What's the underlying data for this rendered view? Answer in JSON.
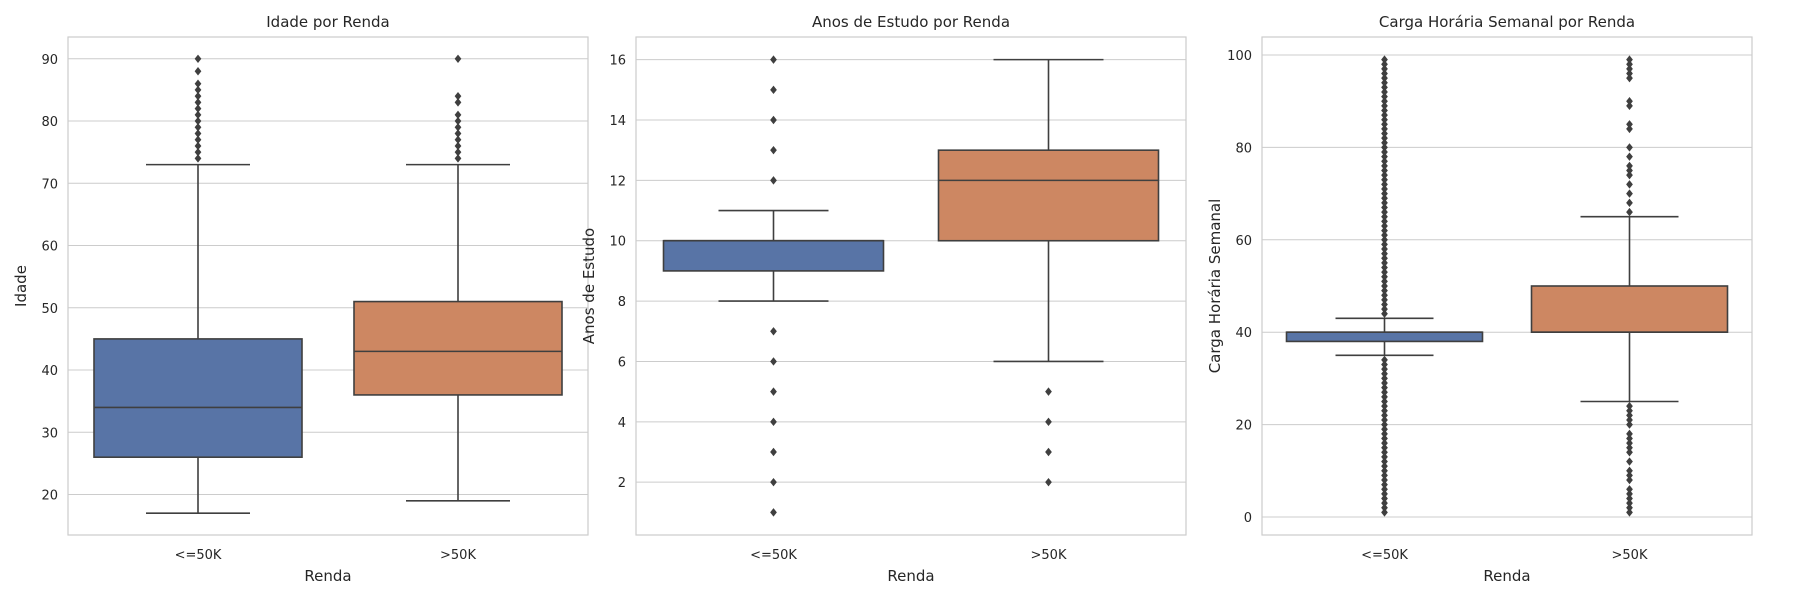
{
  "chart_data": [
    {
      "type": "box",
      "title": "Idade por Renda",
      "xlabel": "Renda",
      "ylabel": "Idade",
      "categories": [
        "<=50K",
        ">50K"
      ],
      "ylim": [
        13.5,
        93.5
      ],
      "yticks": [
        20,
        30,
        40,
        50,
        60,
        70,
        80,
        90
      ],
      "grid": true,
      "boxes": [
        {
          "category": "<=50K",
          "color": "#5874a6",
          "whisker_low": 17,
          "q1": 26,
          "median": 34,
          "q3": 45,
          "whisker_high": 73,
          "outliers": [
            74,
            75,
            76,
            77,
            78,
            79,
            80,
            81,
            82,
            83,
            84,
            85,
            86,
            88,
            90
          ]
        },
        {
          "category": ">50K",
          "color": "#cd8762",
          "whisker_low": 19,
          "q1": 36,
          "median": 43,
          "q3": 51,
          "whisker_high": 73,
          "outliers": [
            74,
            75,
            76,
            77,
            78,
            79,
            80,
            81,
            83,
            84,
            90
          ]
        }
      ]
    },
    {
      "type": "box",
      "title": "Anos de Estudo por Renda",
      "xlabel": "Renda",
      "ylabel": "Anos de Estudo",
      "categories": [
        "<=50K",
        ">50K"
      ],
      "ylim": [
        0.25,
        16.75
      ],
      "yticks": [
        2,
        4,
        6,
        8,
        10,
        12,
        14,
        16
      ],
      "grid": true,
      "boxes": [
        {
          "category": "<=50K",
          "color": "#5874a6",
          "whisker_low": 8,
          "q1": 9,
          "median": 10,
          "q3": 10,
          "whisker_high": 11,
          "outliers": [
            1,
            2,
            3,
            4,
            5,
            6,
            7,
            12,
            13,
            14,
            15,
            16
          ]
        },
        {
          "category": ">50K",
          "color": "#cd8762",
          "whisker_low": 6,
          "q1": 10,
          "median": 12,
          "q3": 13,
          "whisker_high": 16,
          "outliers": [
            2,
            3,
            4,
            5
          ]
        }
      ]
    },
    {
      "type": "box",
      "title": "Carga Horária Semanal por Renda",
      "xlabel": "Renda",
      "ylabel": "Carga Horária Semanal",
      "categories": [
        "<=50K",
        ">50K"
      ],
      "ylim": [
        -3.9,
        103.9
      ],
      "yticks": [
        0,
        20,
        40,
        60,
        80,
        100
      ],
      "grid": true,
      "boxes": [
        {
          "category": "<=50K",
          "color": "#5874a6",
          "whisker_low": 35,
          "q1": 38,
          "median": 40,
          "q3": 40,
          "whisker_high": 43,
          "outliers": [
            1,
            2,
            3,
            4,
            5,
            6,
            7,
            8,
            9,
            10,
            11,
            12,
            13,
            14,
            15,
            16,
            17,
            18,
            19,
            20,
            21,
            22,
            23,
            24,
            25,
            26,
            27,
            28,
            29,
            30,
            31,
            32,
            33,
            34,
            44,
            45,
            46,
            47,
            48,
            49,
            50,
            51,
            52,
            53,
            54,
            55,
            56,
            57,
            58,
            59,
            60,
            61,
            62,
            63,
            64,
            65,
            66,
            67,
            68,
            69,
            70,
            71,
            72,
            73,
            74,
            75,
            76,
            77,
            78,
            79,
            80,
            81,
            82,
            83,
            84,
            85,
            86,
            87,
            88,
            89,
            90,
            91,
            92,
            93,
            94,
            95,
            96,
            97,
            98,
            99
          ]
        },
        {
          "category": ">50K",
          "color": "#cd8762",
          "whisker_low": 25,
          "q1": 40,
          "median": 40,
          "q3": 50,
          "whisker_high": 65,
          "outliers": [
            1,
            2,
            3,
            4,
            5,
            6,
            8,
            9,
            10,
            12,
            14,
            15,
            16,
            17,
            18,
            20,
            21,
            22,
            23,
            24,
            66,
            68,
            70,
            72,
            74,
            75,
            76,
            78,
            80,
            84,
            85,
            89,
            90,
            95,
            96,
            97,
            98,
            99
          ]
        }
      ]
    }
  ]
}
